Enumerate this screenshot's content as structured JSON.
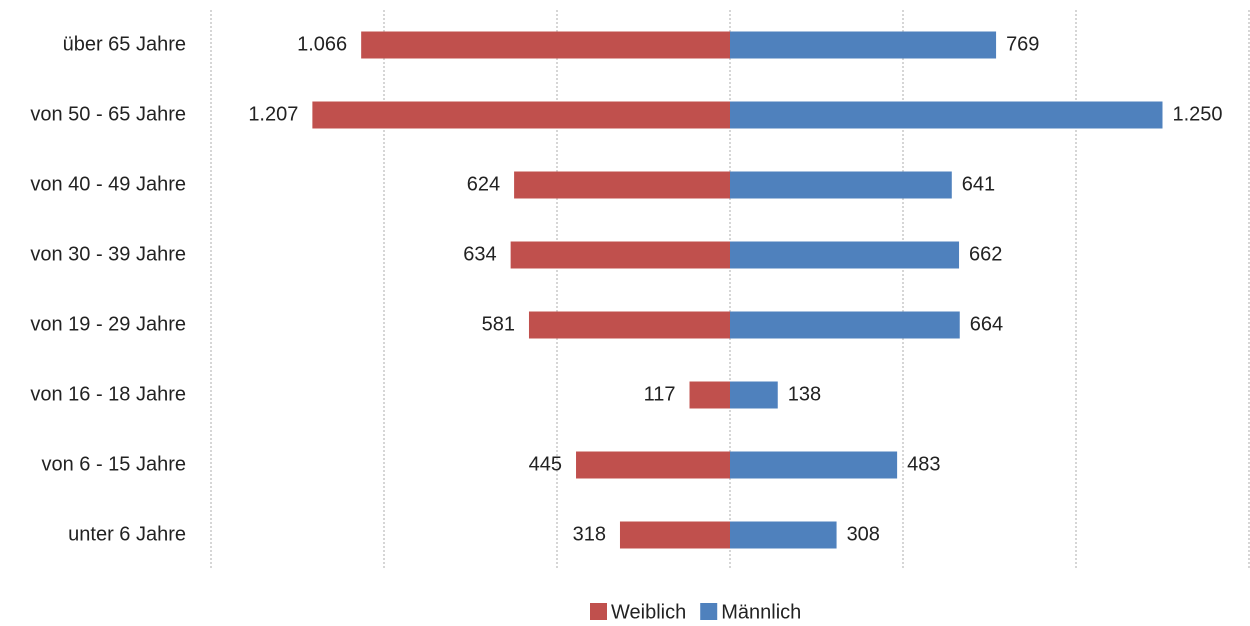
{
  "chart_data": {
    "type": "bar",
    "orientation": "horizontal",
    "layout": "pyramid",
    "categories": [
      "über 65 Jahre",
      "von 50 - 65 Jahre",
      "von 40 - 49 Jahre",
      "von 30 - 39 Jahre",
      "von 19 - 29 Jahre",
      "von 16 - 18 Jahre",
      "von 6 - 15 Jahre",
      "unter 6 Jahre"
    ],
    "series": [
      {
        "name": "Weiblich",
        "color": "#c0504d",
        "side": "left",
        "values": [
          1066,
          1207,
          624,
          634,
          581,
          117,
          445,
          318
        ],
        "value_labels": [
          "1.066",
          "1.207",
          "624",
          "634",
          "581",
          "117",
          "445",
          "318"
        ]
      },
      {
        "name": "Männlich",
        "color": "#4f81bd",
        "side": "right",
        "values": [
          769,
          1250,
          641,
          662,
          664,
          138,
          483,
          308
        ],
        "value_labels": [
          "769",
          "1.250",
          "641",
          "662",
          "664",
          "138",
          "483",
          "308"
        ]
      }
    ],
    "xlim": [
      -1500,
      1500
    ],
    "xticks": [
      -1500,
      -1000,
      -500,
      0,
      500,
      1000,
      1500
    ],
    "grid": true,
    "legend": "bottom"
  }
}
